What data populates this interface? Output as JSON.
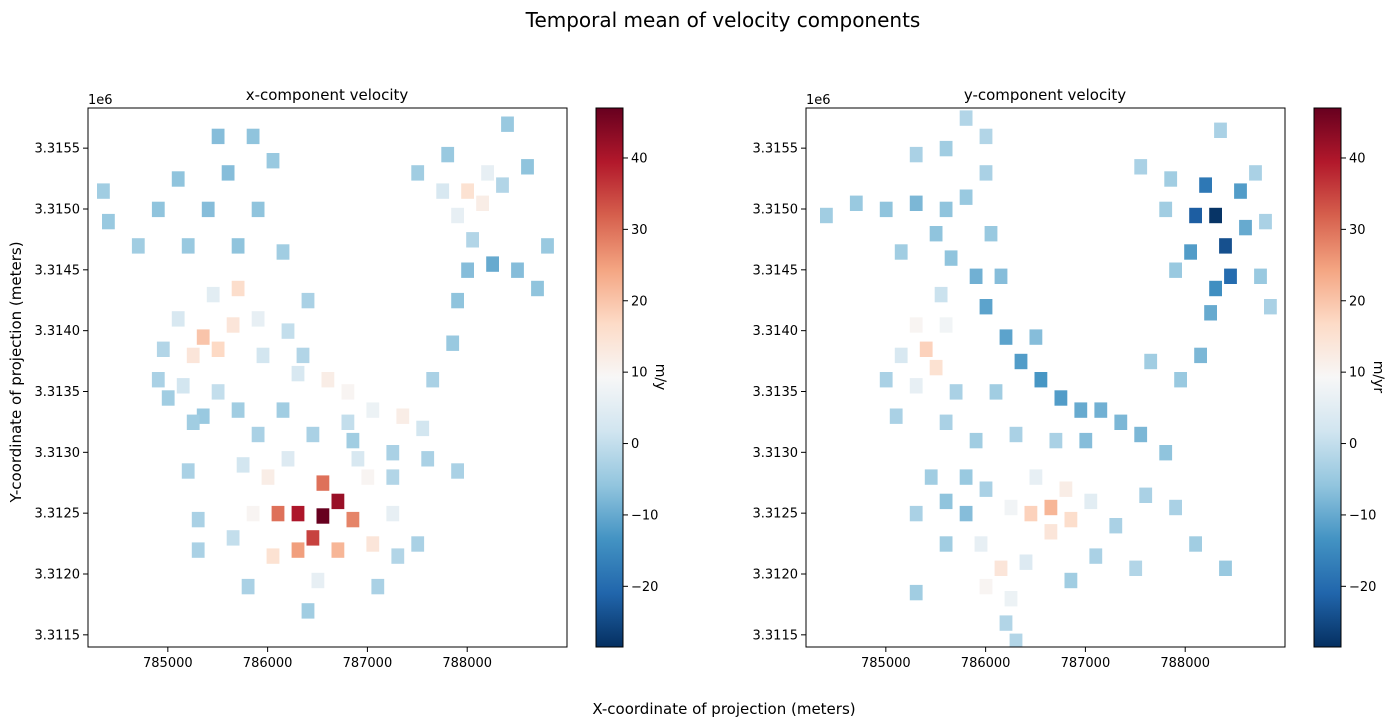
{
  "figure": {
    "title": "Temporal mean of velocity components",
    "xlabel": "X-coordinate of projection (meters)",
    "ylabel": "Y-coordinate of projection (meters)"
  },
  "colormap": {
    "name": "RdBu_r",
    "stops": [
      "#053061",
      "#2166ac",
      "#4393c3",
      "#92c5de",
      "#d1e5f0",
      "#f7f7f7",
      "#fddbc7",
      "#f4a582",
      "#d6604d",
      "#b2182b",
      "#67001f"
    ]
  },
  "chart_data": [
    {
      "type": "heatmap",
      "title": "x-component velocity",
      "xlim": [
        784200,
        789000
      ],
      "ylim": [
        3311400,
        3315830
      ],
      "x_ticks": [
        785000,
        786000,
        787000,
        788000
      ],
      "x_tick_labels": [
        "785000",
        "786000",
        "787000",
        "788000"
      ],
      "y_ticks": [
        3311500,
        3312000,
        3312500,
        3313000,
        3313500,
        3314000,
        3314500,
        3315000,
        3315500
      ],
      "y_tick_labels": [
        "3.3115",
        "3.3120",
        "3.3125",
        "3.3130",
        "3.3135",
        "3.3140",
        "3.3145",
        "3.3150",
        "3.3155"
      ],
      "y_offset_label": "1e6",
      "colorbar": {
        "label": "m/y",
        "vmin": -28.5,
        "vmax": 47,
        "ticks": [
          -20,
          -10,
          0,
          10,
          20,
          30,
          40
        ],
        "tick_labels": [
          "−20",
          "−10",
          "0",
          "10",
          "20",
          "30",
          "40"
        ]
      },
      "cell_size_m": 120,
      "cells": [
        [
          786550,
          3312480,
          47
        ],
        [
          786300,
          3312500,
          40
        ],
        [
          786700,
          3312600,
          42
        ],
        [
          786450,
          3312300,
          35
        ],
        [
          786100,
          3312500,
          30
        ],
        [
          786850,
          3312450,
          28
        ],
        [
          786550,
          3312750,
          30
        ],
        [
          786300,
          3312200,
          25
        ],
        [
          786700,
          3312200,
          22
        ],
        [
          786000,
          3312800,
          12
        ],
        [
          787000,
          3312800,
          10
        ],
        [
          786050,
          3312150,
          15
        ],
        [
          787050,
          3312250,
          14
        ],
        [
          785850,
          3312500,
          10
        ],
        [
          787250,
          3312500,
          6
        ],
        [
          786500,
          3311950,
          6
        ],
        [
          785750,
          3312900,
          2
        ],
        [
          786200,
          3312950,
          4
        ],
        [
          786900,
          3312950,
          3
        ],
        [
          785650,
          3312300,
          0
        ],
        [
          787300,
          3312150,
          -2
        ],
        [
          786400,
          3311700,
          -4
        ],
        [
          785800,
          3311900,
          -3
        ],
        [
          787100,
          3311900,
          -3
        ],
        [
          785350,
          3313950,
          20
        ],
        [
          785500,
          3313850,
          17
        ],
        [
          785250,
          3313800,
          14
        ],
        [
          785650,
          3314050,
          14
        ],
        [
          785700,
          3314350,
          16
        ],
        [
          785900,
          3314100,
          6
        ],
        [
          785100,
          3314100,
          3
        ],
        [
          785150,
          3313550,
          2
        ],
        [
          785450,
          3314300,
          5
        ],
        [
          785950,
          3313800,
          2
        ],
        [
          784950,
          3313850,
          -2
        ],
        [
          785500,
          3313500,
          0
        ],
        [
          786600,
          3313600,
          12
        ],
        [
          786800,
          3313500,
          10
        ],
        [
          787050,
          3313350,
          7
        ],
        [
          787350,
          3313300,
          12
        ],
        [
          786300,
          3313650,
          3
        ],
        [
          787550,
          3313200,
          2
        ],
        [
          786800,
          3313250,
          0
        ],
        [
          786200,
          3314000,
          0
        ],
        [
          788000,
          3315150,
          15
        ],
        [
          788150,
          3315050,
          12
        ],
        [
          787900,
          3314950,
          6
        ],
        [
          788200,
          3315300,
          6
        ],
        [
          787750,
          3315150,
          3
        ],
        [
          788350,
          3315200,
          -2
        ],
        [
          788050,
          3314750,
          -2
        ],
        [
          784400,
          3314900,
          -5
        ],
        [
          784900,
          3315000,
          -6
        ],
        [
          785400,
          3315000,
          -7
        ],
        [
          785900,
          3315000,
          -6
        ],
        [
          784700,
          3314700,
          -4
        ],
        [
          785200,
          3314700,
          -5
        ],
        [
          785700,
          3314700,
          -6
        ],
        [
          786150,
          3314650,
          -4
        ],
        [
          785600,
          3315300,
          -7
        ],
        [
          785500,
          3315600,
          -7
        ],
        [
          785850,
          3315600,
          -6
        ],
        [
          786050,
          3315400,
          -5
        ],
        [
          784350,
          3315150,
          -4
        ],
        [
          785100,
          3315250,
          -6
        ],
        [
          786350,
          3313800,
          -2
        ],
        [
          786400,
          3314250,
          -3
        ],
        [
          786150,
          3313350,
          -4
        ],
        [
          785700,
          3313350,
          -4
        ],
        [
          785350,
          3313300,
          -5
        ],
        [
          785900,
          3313150,
          -3
        ],
        [
          786450,
          3313150,
          -3
        ],
        [
          786850,
          3313100,
          -4
        ],
        [
          787250,
          3313000,
          -3
        ],
        [
          787600,
          3312950,
          -3
        ],
        [
          787900,
          3312850,
          -3
        ],
        [
          787250,
          3312800,
          -2
        ],
        [
          785250,
          3313250,
          -4
        ],
        [
          785000,
          3313450,
          -4
        ],
        [
          784900,
          3313600,
          -3
        ],
        [
          787650,
          3313600,
          -3
        ],
        [
          787850,
          3313900,
          -5
        ],
        [
          787900,
          3314250,
          -6
        ],
        [
          788000,
          3314500,
          -7
        ],
        [
          788250,
          3314550,
          -10
        ],
        [
          788500,
          3314500,
          -7
        ],
        [
          788700,
          3314350,
          -6
        ],
        [
          788800,
          3314700,
          -5
        ],
        [
          788600,
          3315350,
          -6
        ],
        [
          788400,
          3315700,
          -5
        ],
        [
          787800,
          3315450,
          -5
        ],
        [
          787500,
          3315300,
          -4
        ],
        [
          785300,
          3312450,
          -3
        ],
        [
          785200,
          3312850,
          -3
        ],
        [
          785300,
          3312200,
          -3
        ],
        [
          787500,
          3312250,
          -3
        ]
      ]
    },
    {
      "type": "heatmap",
      "title": "y-component velocity",
      "xlim": [
        784200,
        789000
      ],
      "ylim": [
        3311400,
        3315830
      ],
      "x_ticks": [
        785000,
        786000,
        787000,
        788000
      ],
      "x_tick_labels": [
        "785000",
        "786000",
        "787000",
        "788000"
      ],
      "y_ticks": [
        3311500,
        3312000,
        3312500,
        3313000,
        3313500,
        3314000,
        3314500,
        3315000,
        3315500
      ],
      "y_tick_labels": [
        "3.3115",
        "3.3120",
        "3.3125",
        "3.3130",
        "3.3135",
        "3.3140",
        "3.3145",
        "3.3150",
        "3.3155"
      ],
      "y_offset_label": "1e6",
      "colorbar": {
        "label": "m/yr",
        "vmin": -28.5,
        "vmax": 47,
        "ticks": [
          -20,
          -10,
          0,
          10,
          20,
          30,
          40
        ],
        "tick_labels": [
          "−20",
          "−10",
          "0",
          "10",
          "20",
          "30",
          "40"
        ]
      },
      "cell_size_m": 120,
      "cells": [
        [
          786650,
          3312550,
          22
        ],
        [
          786450,
          3312500,
          18
        ],
        [
          786850,
          3312450,
          16
        ],
        [
          786650,
          3312350,
          14
        ],
        [
          786800,
          3312700,
          12
        ],
        [
          786250,
          3312550,
          8
        ],
        [
          787050,
          3312600,
          5
        ],
        [
          786500,
          3312800,
          6
        ],
        [
          786150,
          3312050,
          14
        ],
        [
          786000,
          3311900,
          10
        ],
        [
          786250,
          3311800,
          7
        ],
        [
          785950,
          3312250,
          6
        ],
        [
          786400,
          3312100,
          4
        ],
        [
          786200,
          3311600,
          -2
        ],
        [
          785400,
          3313850,
          18
        ],
        [
          785500,
          3313700,
          15
        ],
        [
          785300,
          3314050,
          10
        ],
        [
          785600,
          3314050,
          8
        ],
        [
          785300,
          3313550,
          6
        ],
        [
          785150,
          3313800,
          3
        ],
        [
          785550,
          3314300,
          1
        ],
        [
          788300,
          3314950,
          -28
        ],
        [
          788100,
          3314950,
          -22
        ],
        [
          788400,
          3314700,
          -24
        ],
        [
          788200,
          3315200,
          -18
        ],
        [
          788450,
          3314450,
          -20
        ],
        [
          788300,
          3314350,
          -14
        ],
        [
          788550,
          3315150,
          -12
        ],
        [
          788050,
          3314650,
          -12
        ],
        [
          788250,
          3314150,
          -10
        ],
        [
          788150,
          3313800,
          -8
        ],
        [
          788600,
          3314850,
          -10
        ],
        [
          786350,
          3313750,
          -12
        ],
        [
          786550,
          3313600,
          -13
        ],
        [
          786200,
          3313950,
          -11
        ],
        [
          786750,
          3313450,
          -12
        ],
        [
          786000,
          3314200,
          -11
        ],
        [
          786950,
          3313350,
          -10
        ],
        [
          787150,
          3313350,
          -9
        ],
        [
          785900,
          3314450,
          -9
        ],
        [
          787350,
          3313250,
          -8
        ],
        [
          787550,
          3313150,
          -8
        ],
        [
          787800,
          3313000,
          -6
        ],
        [
          787000,
          3313100,
          -7
        ],
        [
          786150,
          3314450,
          -7
        ],
        [
          786500,
          3313950,
          -7
        ],
        [
          785650,
          3314600,
          -6
        ],
        [
          785500,
          3314800,
          -6
        ],
        [
          785300,
          3315050,
          -8
        ],
        [
          785000,
          3315000,
          -6
        ],
        [
          784700,
          3315050,
          -5
        ],
        [
          785600,
          3315000,
          -6
        ],
        [
          785800,
          3315100,
          -5
        ],
        [
          784400,
          3314950,
          -4
        ],
        [
          785150,
          3314650,
          -4
        ],
        [
          786000,
          3315300,
          -3
        ],
        [
          785600,
          3315500,
          -4
        ],
        [
          785300,
          3315450,
          -3
        ],
        [
          786000,
          3315600,
          -2
        ],
        [
          785800,
          3315750,
          -2
        ],
        [
          785800,
          3312500,
          -7
        ],
        [
          785600,
          3312600,
          -6
        ],
        [
          785800,
          3312800,
          -5
        ],
        [
          785450,
          3312800,
          -4
        ],
        [
          786000,
          3312700,
          -3
        ],
        [
          785300,
          3312500,
          -3
        ],
        [
          785600,
          3312250,
          -4
        ],
        [
          787100,
          3312150,
          -3
        ],
        [
          786850,
          3311950,
          -4
        ],
        [
          787300,
          3312400,
          -3
        ],
        [
          787600,
          3312650,
          -3
        ],
        [
          787900,
          3312550,
          -3
        ],
        [
          788100,
          3312250,
          -4
        ],
        [
          788400,
          3312050,
          -5
        ],
        [
          787500,
          3312050,
          -2
        ],
        [
          785900,
          3313100,
          -4
        ],
        [
          785600,
          3313250,
          -3
        ],
        [
          786300,
          3313150,
          -3
        ],
        [
          786700,
          3313100,
          -3
        ],
        [
          785100,
          3313300,
          -3
        ],
        [
          785000,
          3313600,
          -3
        ],
        [
          785700,
          3313500,
          -3
        ],
        [
          786100,
          3313500,
          -4
        ],
        [
          787650,
          3313750,
          -4
        ],
        [
          787950,
          3313600,
          -5
        ],
        [
          787850,
          3315250,
          -4
        ],
        [
          787550,
          3315350,
          -3
        ],
        [
          788750,
          3314450,
          -5
        ],
        [
          788800,
          3314900,
          -3
        ],
        [
          788700,
          3315300,
          -3
        ],
        [
          788350,
          3315650,
          -3
        ],
        [
          787900,
          3314500,
          -5
        ],
        [
          787800,
          3315000,
          -4
        ],
        [
          788850,
          3314200,
          -3
        ],
        [
          786300,
          3311450,
          -2
        ],
        [
          786050,
          3314800,
          -5
        ],
        [
          785300,
          3311850,
          -4
        ]
      ]
    }
  ]
}
